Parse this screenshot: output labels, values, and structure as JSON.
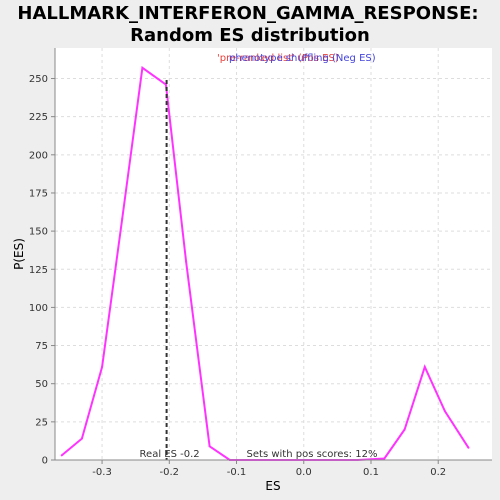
{
  "chart_data": {
    "type": "line",
    "title": "HALLMARK_INTERFERON_GAMMA_RESPONSE:",
    "subtitle": "Random ES distribution",
    "xlabel": "ES",
    "ylabel": "P(ES)",
    "xlim": [
      -0.37,
      0.28
    ],
    "ylim": [
      0,
      270
    ],
    "x_ticks": [
      -0.3,
      -0.2,
      -0.1,
      0.0,
      0.1,
      0.2
    ],
    "x_tick_labels": [
      "-0.3",
      "-0.2",
      "-0.1",
      "0.0",
      "0.1",
      "0.2"
    ],
    "y_ticks": [
      0,
      25,
      50,
      75,
      100,
      125,
      150,
      175,
      200,
      225,
      250
    ],
    "grid": true,
    "legend_placement": "top-center",
    "legend": [
      {
        "label": "'pre-ranked list' (Pos ES)",
        "color": "#e8413c"
      },
      {
        "label": "phenotype shuffling (Neg ES)",
        "color": "#4444dd"
      }
    ],
    "series": [
      {
        "color": "#ff33ff",
        "x": [
          -0.36,
          -0.33,
          -0.3,
          -0.27,
          -0.24,
          -0.205,
          -0.175,
          -0.14,
          -0.11,
          -0.08,
          0.0,
          0.08,
          0.12,
          0.15,
          0.18,
          0.21,
          0.245
        ],
        "y": [
          3,
          14,
          61,
          158,
          257,
          246,
          130,
          9,
          0,
          0,
          0,
          0,
          1,
          20,
          61,
          32,
          8
        ]
      }
    ],
    "real_es": {
      "value": -0.204,
      "label": "Real ES -0.2"
    },
    "pos_scores_label": "Sets with pos scores: 12%"
  }
}
